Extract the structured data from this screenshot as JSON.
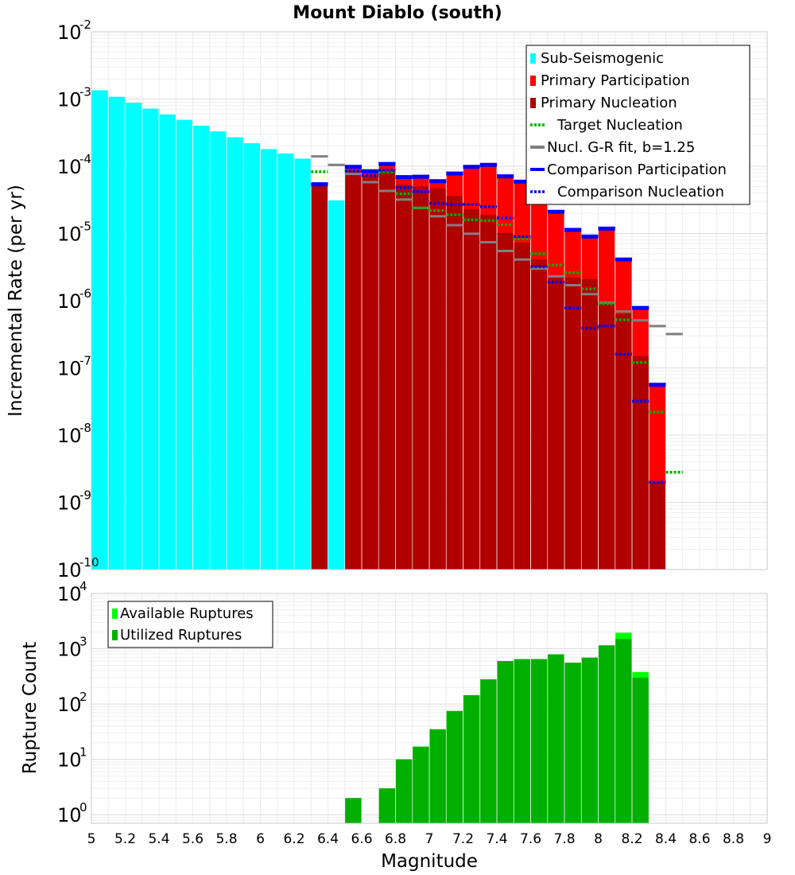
{
  "chart_data": [
    {
      "type": "bar",
      "title": "Mount Diablo (south)",
      "ylabel": "Incremental Rate (per yr)",
      "yscale": "log",
      "ylim": [
        1e-10,
        0.01
      ],
      "xlim": [
        5,
        9
      ],
      "grid": true,
      "legend_position": "top-right",
      "legend": [
        {
          "label": "Sub-Seismogenic",
          "color": "#00ffff",
          "style": "box"
        },
        {
          "label": "Primary Participation",
          "color": "#ff0000",
          "style": "box"
        },
        {
          "label": "Primary Nucleation",
          "color": "#b00000",
          "style": "box"
        },
        {
          "label": "Target Nucleation",
          "color": "#00b000",
          "style": "dotted"
        },
        {
          "label": "Nucl. G-R fit, b=1.25",
          "color": "#808080",
          "style": "solid"
        },
        {
          "label": "Comparison Participation",
          "color": "#0000ff",
          "style": "solid"
        },
        {
          "label": "Comparison Nucleation",
          "color": "#0000ff",
          "style": "dotted"
        }
      ],
      "series": [
        {
          "key": "sub_seismogenic",
          "color": "#00ffff",
          "x": [
            5.05,
            5.15,
            5.25,
            5.35,
            5.45,
            5.55,
            5.65,
            5.75,
            5.85,
            5.95,
            6.05,
            6.15,
            6.25,
            6.35,
            6.45
          ],
          "values": [
            0.00135,
            0.00108,
            0.00088,
            0.00072,
            0.00059,
            0.00049,
            0.0004,
            0.00033,
            0.00027,
            0.00022,
            0.00018,
            0.000155,
            0.00013,
            0,
            3.1e-05
          ]
        },
        {
          "key": "primary_participation",
          "color": "#ff0000",
          "x": [
            6.35,
            6.55,
            6.65,
            6.75,
            6.85,
            6.95,
            7.05,
            7.15,
            7.25,
            7.35,
            7.45,
            7.55,
            7.65,
            7.75,
            7.85,
            7.95,
            8.05,
            8.15,
            8.25,
            8.35
          ],
          "values": [
            5.4e-05,
            9.8e-05,
            8.4e-05,
            0.000108,
            6.9e-05,
            7e-05,
            6e-05,
            7.8e-05,
            9.8e-05,
            0.000105,
            7.1e-05,
            5.9e-05,
            3.6e-05,
            2.1e-05,
            1.13e-05,
            9e-06,
            1.18e-05,
            4.1e-06,
            7.8e-07,
            5.6e-08
          ]
        },
        {
          "key": "primary_nucleation",
          "color": "#b00000",
          "x": [
            6.35,
            6.55,
            6.65,
            6.75,
            6.85,
            6.95,
            7.05,
            7.15,
            7.25,
            7.35,
            7.45,
            7.55,
            7.65,
            7.75,
            7.85,
            7.95,
            8.05,
            8.15,
            8.25,
            8.35
          ],
          "values": [
            5.4e-05,
            8.5e-05,
            7.3e-05,
            8.8e-05,
            5.3e-05,
            5e-05,
            4.7e-05,
            3.6e-05,
            2.3e-05,
            1.9e-05,
            1.02e-05,
            7.3e-06,
            4.1e-06,
            2.4e-06,
            2.2e-06,
            2.1e-06,
            9.5e-07,
            6.4e-07,
            1.5e-07,
            2e-09
          ]
        },
        {
          "key": "target_nucleation",
          "color": "#00b000",
          "x": [
            6.35,
            6.45,
            6.55,
            6.65,
            6.75,
            6.85,
            6.95,
            7.05,
            7.15,
            7.25,
            7.35,
            7.45,
            7.55,
            7.65,
            7.75,
            7.85,
            7.95,
            8.05,
            8.15,
            8.25,
            8.35,
            8.45
          ],
          "values": [
            8.3e-05,
            0,
            8.6e-05,
            8.6e-05,
            8.2e-05,
            3.9e-05,
            2.4e-05,
            2.2e-05,
            1.9e-05,
            1.6e-05,
            1.55e-05,
            1.35e-05,
            8.3e-06,
            5e-06,
            3.4e-06,
            2.6e-06,
            1.5e-06,
            9e-07,
            5.2e-07,
            1.2e-07,
            2.2e-08,
            2.8e-09
          ]
        },
        {
          "key": "gr_fit",
          "color": "#808080",
          "x": [
            6.35,
            6.45,
            6.55,
            6.65,
            6.75,
            6.85,
            6.95,
            7.05,
            7.15,
            7.25,
            7.35,
            7.45,
            7.55,
            7.65,
            7.75,
            7.85,
            7.95,
            8.05,
            8.15,
            8.25,
            8.35,
            8.45
          ],
          "values": [
            0.00014,
            0.000105,
            7.7e-05,
            5.8e-05,
            4.3e-05,
            3.2e-05,
            2.4e-05,
            1.8e-05,
            1.33e-05,
            9.9e-06,
            7.4e-06,
            5.5e-06,
            4.1e-06,
            3e-06,
            2.3e-06,
            1.7e-06,
            1.25e-06,
            9.3e-07,
            6.9e-07,
            5.1e-07,
            4.2e-07,
            3.2e-07
          ]
        },
        {
          "key": "comparison_participation",
          "color": "#0000ff",
          "x": [
            6.35,
            6.55,
            6.65,
            6.75,
            6.85,
            6.95,
            7.05,
            7.15,
            7.25,
            7.35,
            7.45,
            7.55,
            7.65,
            7.75,
            7.85,
            7.95,
            8.05,
            8.15,
            8.25,
            8.35
          ],
          "values": [
            5.4e-05,
            9.8e-05,
            8.4e-05,
            0.000108,
            6.9e-05,
            7e-05,
            6e-05,
            7.8e-05,
            9.8e-05,
            0.000105,
            7.1e-05,
            5.9e-05,
            3.6e-05,
            2.1e-05,
            1.13e-05,
            9e-06,
            1.18e-05,
            4.1e-06,
            7.8e-07,
            5.6e-08
          ]
        },
        {
          "key": "comparison_nucleation",
          "color": "#0000ff",
          "x": [
            6.35,
            6.55,
            6.65,
            6.75,
            6.85,
            6.95,
            7.05,
            7.15,
            7.25,
            7.35,
            7.45,
            7.55,
            7.65,
            7.75,
            7.85,
            7.95,
            8.05,
            8.15,
            8.25,
            8.35
          ],
          "values": [
            5.4e-05,
            8.5e-05,
            7.3e-05,
            8.8e-05,
            4.8e-05,
            4.2e-05,
            2.8e-05,
            2.7e-05,
            2.7e-05,
            2.5e-05,
            1.7e-05,
            9e-06,
            3.2e-06,
            1.9e-06,
            7.8e-07,
            3.9e-07,
            4.2e-07,
            1.6e-07,
            3.2e-08,
            2e-09
          ]
        }
      ]
    },
    {
      "type": "bar",
      "title": "",
      "xlabel": "Magnitude",
      "ylabel": "Rupture Count",
      "yscale": "log",
      "ylim": [
        0.7,
        10000
      ],
      "xlim": [
        5,
        9
      ],
      "grid": true,
      "legend_position": "top-left",
      "legend": [
        {
          "label": "Available Ruptures",
          "color": "#00ff00"
        },
        {
          "label": "Utilized Ruptures",
          "color": "#00b000"
        }
      ],
      "series": [
        {
          "key": "available",
          "color": "#00ff00",
          "x": [
            6.55,
            6.75,
            6.85,
            6.95,
            7.05,
            7.15,
            7.25,
            7.35,
            7.45,
            7.55,
            7.65,
            7.75,
            7.85,
            7.95,
            8.05,
            8.15,
            8.25
          ],
          "values": [
            2,
            3,
            10,
            17,
            35,
            75,
            145,
            280,
            600,
            650,
            650,
            790,
            560,
            690,
            1150,
            1950,
            380
          ]
        },
        {
          "key": "utilized",
          "color": "#00b000",
          "x": [
            6.55,
            6.75,
            6.85,
            6.95,
            7.05,
            7.15,
            7.25,
            7.35,
            7.45,
            7.55,
            7.65,
            7.75,
            7.85,
            7.95,
            8.05,
            8.15,
            8.25
          ],
          "values": [
            2,
            3,
            10,
            17,
            35,
            75,
            145,
            280,
            600,
            650,
            650,
            790,
            560,
            690,
            1150,
            1500,
            300
          ]
        }
      ]
    }
  ],
  "x_ticks": [
    "5",
    "5.2",
    "5.4",
    "5.6",
    "5.8",
    "6",
    "6.2",
    "6.4",
    "6.6",
    "6.8",
    "7",
    "7.2",
    "7.4",
    "7.6",
    "7.8",
    "8",
    "8.2",
    "8.4",
    "8.6",
    "8.8",
    "9"
  ],
  "top_y_exponents": [
    "-2",
    "-3",
    "-4",
    "-5",
    "-6",
    "-7",
    "-8",
    "-9",
    "-10"
  ],
  "bottom_y_exponents": [
    "4",
    "3",
    "2",
    "1",
    "0"
  ],
  "tick_base": "10"
}
